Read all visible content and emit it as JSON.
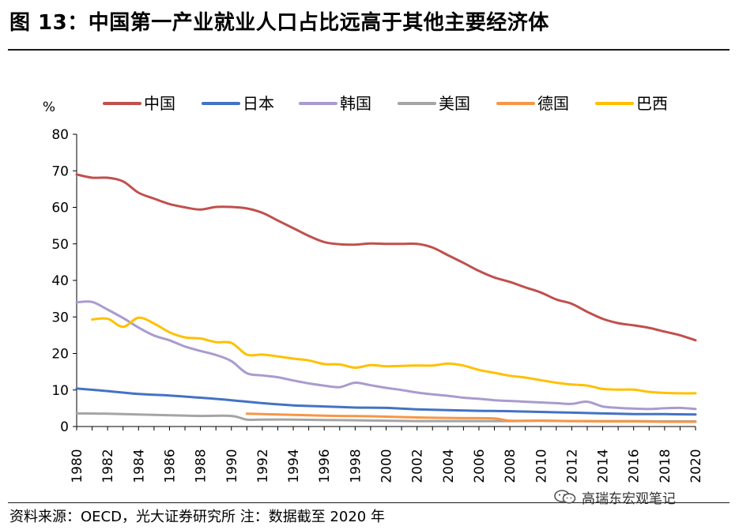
{
  "title": "图 13：中国第一产业就业人口占比远高于其他主要经济体",
  "footer": "资料来源：OECD，光大证券研究所 注：数据截至 2020 年",
  "watermark": {
    "text": "高瑞东宏观笔记",
    "icon": "wechat-icon"
  },
  "chart_data": {
    "type": "line",
    "ylabel": "%",
    "ylim": [
      0,
      80
    ],
    "yticks": [
      0,
      10,
      20,
      30,
      40,
      50,
      60,
      70,
      80
    ],
    "xlim": [
      1980,
      2020
    ],
    "xticks": [
      1980,
      1982,
      1984,
      1986,
      1988,
      1990,
      1992,
      1994,
      1996,
      1998,
      2000,
      2002,
      2004,
      2006,
      2008,
      2010,
      2012,
      2014,
      2016,
      2018,
      2020
    ],
    "grid": false,
    "legend_position": "top",
    "series": [
      {
        "name": "中国",
        "color": "#C0504D",
        "x": [
          1980,
          1981,
          1982,
          1983,
          1984,
          1985,
          1986,
          1987,
          1988,
          1989,
          1990,
          1991,
          1992,
          1993,
          1994,
          1995,
          1996,
          1997,
          1998,
          1999,
          2000,
          2001,
          2002,
          2003,
          2004,
          2005,
          2006,
          2007,
          2008,
          2009,
          2010,
          2011,
          2012,
          2013,
          2014,
          2015,
          2016,
          2017,
          2018,
          2019,
          2020
        ],
        "y": [
          69,
          68.1,
          68.1,
          67.1,
          64,
          62.4,
          60.9,
          60,
          59.4,
          60.1,
          60.1,
          59.7,
          58.5,
          56.4,
          54.3,
          52.2,
          50.5,
          49.9,
          49.8,
          50.1,
          50,
          50,
          50,
          49,
          46.9,
          44.8,
          42.6,
          40.8,
          39.6,
          38.1,
          36.7,
          34.8,
          33.6,
          31.4,
          29.5,
          28.3,
          27.7,
          27,
          26,
          25,
          23.6
        ]
      },
      {
        "name": "日本",
        "color": "#4472C4",
        "x": [
          1980,
          1982,
          1984,
          1986,
          1988,
          1990,
          1992,
          1994,
          1996,
          1998,
          2000,
          2002,
          2004,
          2006,
          2008,
          2010,
          2012,
          2014,
          2016,
          2018,
          2020
        ],
        "y": [
          10.4,
          9.7,
          8.9,
          8.5,
          7.9,
          7.2,
          6.4,
          5.8,
          5.5,
          5.2,
          5.1,
          4.7,
          4.5,
          4.3,
          4.2,
          4,
          3.8,
          3.6,
          3.4,
          3.4,
          3.3
        ]
      },
      {
        "name": "韩国",
        "color": "#A99BCE",
        "x": [
          1980,
          1981,
          1982,
          1983,
          1984,
          1985,
          1986,
          1987,
          1988,
          1989,
          1990,
          1991,
          1992,
          1993,
          1994,
          1995,
          1996,
          1997,
          1998,
          1999,
          2000,
          2001,
          2002,
          2003,
          2004,
          2005,
          2006,
          2007,
          2008,
          2009,
          2010,
          2011,
          2012,
          2013,
          2014,
          2015,
          2016,
          2017,
          2018,
          2019,
          2020
        ],
        "y": [
          34,
          34.1,
          32,
          29.7,
          27.1,
          24.9,
          23.6,
          21.9,
          20.7,
          19.6,
          17.9,
          14.6,
          14,
          13.5,
          12.6,
          11.8,
          11.2,
          10.8,
          12,
          11.3,
          10.6,
          10,
          9.3,
          8.8,
          8.4,
          7.9,
          7.6,
          7.2,
          7,
          6.8,
          6.6,
          6.4,
          6.2,
          6.8,
          5.5,
          5.1,
          4.9,
          4.8,
          5,
          5.1,
          4.8
        ]
      },
      {
        "name": "美国",
        "color": "#A5A5A5",
        "x": [
          1980,
          1982,
          1984,
          1986,
          1988,
          1990,
          1991,
          1992,
          1994,
          1996,
          1998,
          2000,
          2002,
          2004,
          2006,
          2008,
          2010,
          2012,
          2014,
          2016,
          2018,
          2020
        ],
        "y": [
          3.6,
          3.5,
          3.3,
          3.1,
          2.9,
          2.9,
          1.9,
          1.9,
          1.9,
          1.8,
          1.7,
          1.6,
          1.5,
          1.5,
          1.5,
          1.5,
          1.6,
          1.5,
          1.5,
          1.5,
          1.4,
          1.4
        ]
      },
      {
        "name": "德国",
        "color": "#F79646",
        "x": [
          1991,
          1993,
          1995,
          1997,
          1999,
          2001,
          2003,
          2005,
          2007,
          2008,
          2010,
          2012,
          2014,
          2016,
          2018,
          2020
        ],
        "y": [
          3.5,
          3.3,
          3.1,
          2.9,
          2.8,
          2.6,
          2.4,
          2.3,
          2.2,
          1.6,
          1.6,
          1.5,
          1.4,
          1.4,
          1.3,
          1.3
        ]
      },
      {
        "name": "巴西",
        "color": "#FFC000",
        "x": [
          1981,
          1982,
          1983,
          1984,
          1985,
          1986,
          1987,
          1988,
          1989,
          1990,
          1991,
          1992,
          1993,
          1994,
          1995,
          1996,
          1997,
          1998,
          1999,
          2000,
          2001,
          2002,
          2003,
          2004,
          2005,
          2006,
          2007,
          2008,
          2009,
          2010,
          2011,
          2012,
          2013,
          2014,
          2015,
          2016,
          2017,
          2018,
          2019,
          2020
        ],
        "y": [
          29.3,
          29.5,
          27.3,
          29.8,
          28.2,
          25.8,
          24.4,
          24.1,
          23.1,
          22.9,
          19.7,
          19.7,
          19.2,
          18.6,
          18.1,
          17.1,
          17,
          16.1,
          16.8,
          16.5,
          16.6,
          16.7,
          16.7,
          17.2,
          16.7,
          15.5,
          14.7,
          13.9,
          13.4,
          12.7,
          12,
          11.5,
          11.2,
          10.3,
          10.1,
          10.1,
          9.5,
          9.2,
          9.1,
          9.1
        ]
      }
    ]
  }
}
